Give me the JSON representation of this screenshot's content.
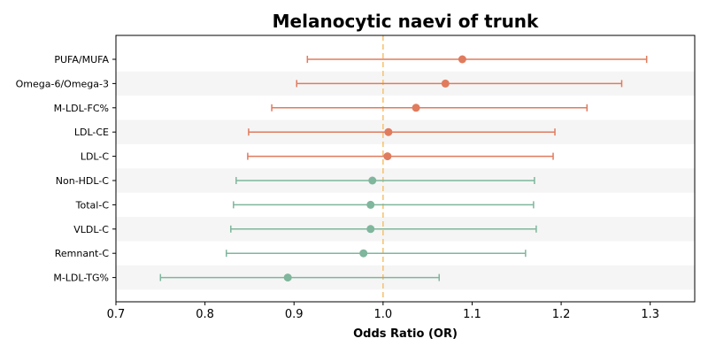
{
  "chart_data": {
    "type": "forest",
    "title": "Melanocytic naevi of trunk",
    "xlabel": "Odds Ratio (OR)",
    "ylabel": "",
    "xlim": [
      0.7,
      1.35
    ],
    "xticks": [
      0.7,
      0.8,
      0.9,
      1.0,
      1.1,
      1.2,
      1.3
    ],
    "xtick_labels": [
      "0.7",
      "0.8",
      "0.9",
      "1.0",
      "1.1",
      "1.2",
      "1.3"
    ],
    "reference_line": 1.0,
    "rows": [
      {
        "label": "PUFA/MUFA",
        "or": 1.089,
        "lower": 0.915,
        "upper": 1.296,
        "color": "#e07b5d"
      },
      {
        "label": "Omega-6/Omega-3",
        "or": 1.07,
        "lower": 0.903,
        "upper": 1.268,
        "color": "#e07b5d"
      },
      {
        "label": "M-LDL-FC%",
        "or": 1.037,
        "lower": 0.875,
        "upper": 1.229,
        "color": "#e07b5d"
      },
      {
        "label": "LDL-CE",
        "or": 1.006,
        "lower": 0.849,
        "upper": 1.193,
        "color": "#e07b5d"
      },
      {
        "label": "LDL-C",
        "or": 1.005,
        "lower": 0.848,
        "upper": 1.191,
        "color": "#e07b5d"
      },
      {
        "label": "Non-HDL-C",
        "or": 0.988,
        "lower": 0.835,
        "upper": 1.17,
        "color": "#7fb69c"
      },
      {
        "label": "Total-C",
        "or": 0.986,
        "lower": 0.832,
        "upper": 1.169,
        "color": "#7fb69c"
      },
      {
        "label": "VLDL-C",
        "or": 0.986,
        "lower": 0.829,
        "upper": 1.172,
        "color": "#7fb69c"
      },
      {
        "label": "Remnant-C",
        "or": 0.978,
        "lower": 0.824,
        "upper": 1.16,
        "color": "#7fb69c"
      },
      {
        "label": "M-LDL-TG%",
        "or": 0.893,
        "lower": 0.75,
        "upper": 1.063,
        "color": "#7fb69c"
      }
    ],
    "reference_line_color": "#f5c06b",
    "band_color": "#f5f5f5"
  }
}
